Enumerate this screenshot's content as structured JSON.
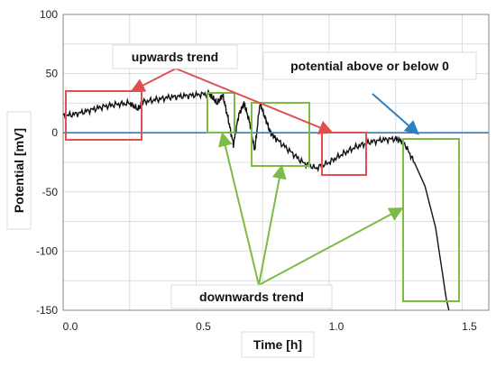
{
  "chart_data": {
    "type": "line",
    "title": "",
    "xlabel": "Time [h]",
    "ylabel": "Potential [mV]",
    "xlim": [
      0,
      1.6
    ],
    "ylim": [
      -150,
      100
    ],
    "x_ticks": [
      "0.0",
      "0.5",
      "1.0",
      "1.5"
    ],
    "x_tick_values": [
      0,
      0.5,
      1.0,
      1.5
    ],
    "y_ticks": [
      "100",
      "50",
      "0",
      "-50",
      "-100",
      "-150"
    ],
    "y_tick_values": [
      100,
      50,
      0,
      -50,
      -100,
      -150
    ],
    "grid": true,
    "series": [
      {
        "color": "#111111",
        "x": [
          0.0,
          0.05,
          0.1,
          0.15,
          0.2,
          0.25,
          0.28,
          0.3,
          0.35,
          0.4,
          0.45,
          0.5,
          0.55,
          0.56,
          0.58,
          0.6,
          0.62,
          0.64,
          0.66,
          0.68,
          0.7,
          0.72,
          0.74,
          0.76,
          0.78,
          0.8,
          0.85,
          0.9,
          0.95,
          1.0,
          1.05,
          1.1,
          1.15,
          1.2,
          1.25,
          1.28,
          1.32,
          1.36,
          1.4,
          1.42,
          1.44,
          1.45
        ],
        "y": [
          14,
          16,
          19,
          22,
          24,
          25,
          20,
          26,
          28,
          30,
          31,
          32,
          33,
          30,
          25,
          32,
          12,
          -10,
          15,
          25,
          10,
          -15,
          25,
          12,
          0,
          -5,
          -15,
          -25,
          -30,
          -25,
          -18,
          -12,
          -8,
          -6,
          -5,
          -8,
          -25,
          -45,
          -80,
          -110,
          -140,
          -150
        ]
      },
      {
        "color": "#2e7fc0",
        "x": [
          0,
          1.6
        ],
        "y": [
          0,
          0
        ]
      }
    ]
  },
  "annotations": {
    "upwards_trend": "upwards trend",
    "downwards_trend": "downwards trend",
    "potential_zero": "potential above or below 0"
  },
  "colors": {
    "red": "#e05050",
    "green": "#7cbb45",
    "blue": "#2e7fc0",
    "grid": "#dddddd"
  }
}
